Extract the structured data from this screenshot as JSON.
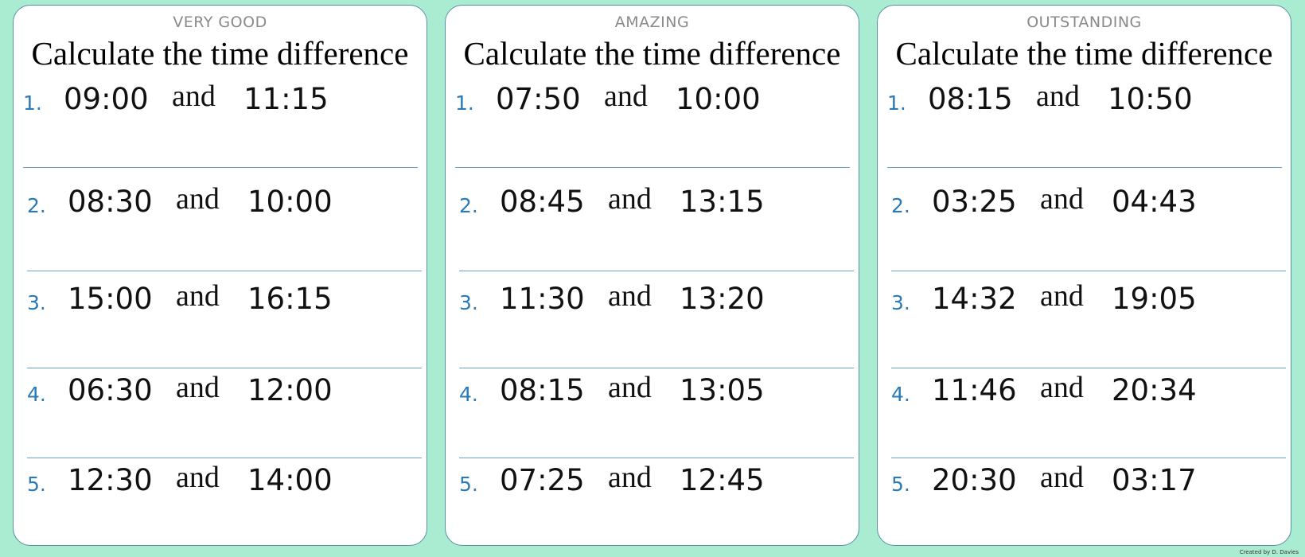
{
  "panels": [
    {
      "level": "VERY GOOD",
      "title": "Calculate the time difference",
      "questions": [
        {
          "number": "1.",
          "start": "09:00",
          "end": "11:15"
        },
        {
          "number": "2.",
          "start": "08:30",
          "end": "10:00"
        },
        {
          "number": "3.",
          "start": "15:00",
          "end": "16:15"
        },
        {
          "number": "4.",
          "start": "06:30",
          "end": "12:00"
        },
        {
          "number": "5.",
          "start": "12:30",
          "end": "14:00"
        }
      ]
    },
    {
      "level": "AMAZING",
      "title": "Calculate the time difference",
      "questions": [
        {
          "number": "1.",
          "start": "07:50",
          "end": "10:00"
        },
        {
          "number": "2.",
          "start": "08:45",
          "end": "13:15"
        },
        {
          "number": "3.",
          "start": "11:30",
          "end": "13:20"
        },
        {
          "number": "4.",
          "start": "08:15",
          "end": "13:05"
        },
        {
          "number": "5.",
          "start": "07:25",
          "end": "12:45"
        }
      ]
    },
    {
      "level": "OUTSTANDING",
      "title": "Calculate the time difference",
      "questions": [
        {
          "number": "1.",
          "start": "08:15",
          "end": "10:50"
        },
        {
          "number": "2.",
          "start": "03:25",
          "end": "04:43"
        },
        {
          "number": "3.",
          "start": "14:32",
          "end": "19:05"
        },
        {
          "number": "4.",
          "start": "11:46",
          "end": "20:34"
        },
        {
          "number": "5.",
          "start": "20:30",
          "end": "03:17"
        }
      ]
    }
  ],
  "connector": "and",
  "footer": "Created by D. Davies"
}
